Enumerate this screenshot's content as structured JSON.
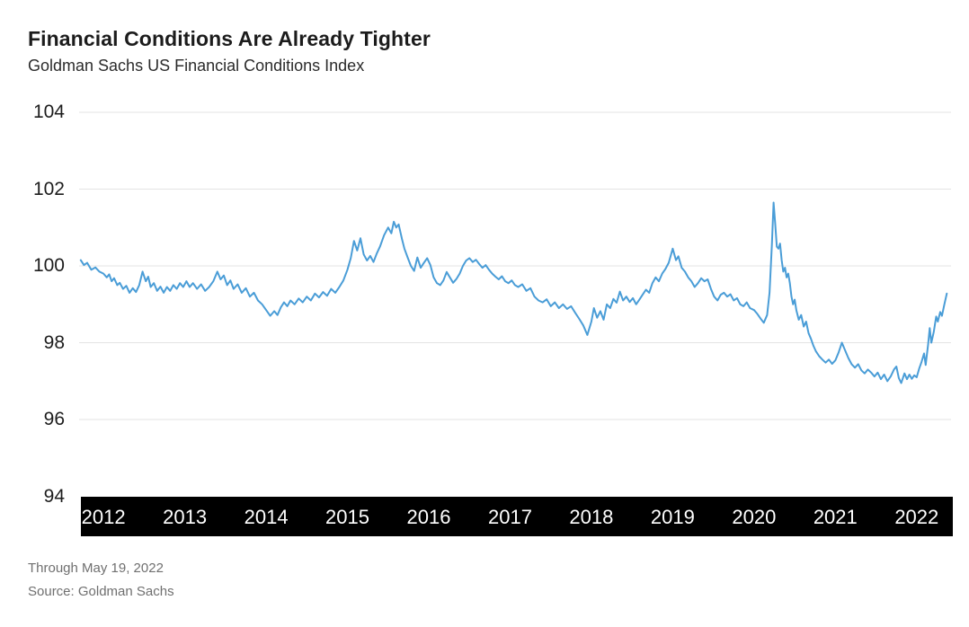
{
  "header": {
    "title": "Financial Conditions Are Already Tighter",
    "subtitle": "Goldman Sachs US Financial Conditions Index"
  },
  "footer": {
    "through": "Through May 19, 2022",
    "source": "Source: Goldman Sachs"
  },
  "colors": {
    "line": "#4A9DD7",
    "gridline": "#e3e3e3",
    "axis_bar": "#000000",
    "axis_bar_text": "#ffffff",
    "y_label_text": "#1d1d1d"
  },
  "chart_data": {
    "type": "line",
    "title": "Financial Conditions Are Already Tighter",
    "subtitle": "Goldman Sachs US Financial Conditions Index",
    "xlabel": "",
    "ylabel": "",
    "x_range": [
      2011.7,
      2022.4
    ],
    "ylim": [
      94,
      104
    ],
    "y_ticks": [
      94,
      96,
      98,
      100,
      102,
      104
    ],
    "y_gridline_ticks": [
      96,
      98,
      100,
      102,
      104
    ],
    "x_tick_labels": [
      "2012",
      "2013",
      "2014",
      "2015",
      "2016",
      "2017",
      "2018",
      "2019",
      "2020",
      "2021",
      "2022"
    ],
    "x_ticks": [
      2012,
      2013,
      2014,
      2015,
      2016,
      2017,
      2018,
      2019,
      2020,
      2021,
      2022
    ],
    "grid": "horizontal",
    "legend": "none",
    "series": [
      {
        "name": "Goldman Sachs US Financial Conditions Index",
        "points": [
          [
            2011.72,
            100.15
          ],
          [
            2011.76,
            100.02
          ],
          [
            2011.8,
            100.08
          ],
          [
            2011.85,
            99.9
          ],
          [
            2011.9,
            99.96
          ],
          [
            2011.95,
            99.85
          ],
          [
            2012.0,
            99.8
          ],
          [
            2012.04,
            99.7
          ],
          [
            2012.07,
            99.78
          ],
          [
            2012.1,
            99.6
          ],
          [
            2012.13,
            99.68
          ],
          [
            2012.17,
            99.5
          ],
          [
            2012.2,
            99.56
          ],
          [
            2012.24,
            99.4
          ],
          [
            2012.28,
            99.48
          ],
          [
            2012.32,
            99.3
          ],
          [
            2012.36,
            99.42
          ],
          [
            2012.4,
            99.32
          ],
          [
            2012.44,
            99.5
          ],
          [
            2012.48,
            99.85
          ],
          [
            2012.52,
            99.6
          ],
          [
            2012.55,
            99.72
          ],
          [
            2012.58,
            99.45
          ],
          [
            2012.62,
            99.55
          ],
          [
            2012.66,
            99.35
          ],
          [
            2012.7,
            99.46
          ],
          [
            2012.74,
            99.3
          ],
          [
            2012.78,
            99.45
          ],
          [
            2012.82,
            99.35
          ],
          [
            2012.86,
            99.5
          ],
          [
            2012.9,
            99.4
          ],
          [
            2012.94,
            99.55
          ],
          [
            2012.98,
            99.45
          ],
          [
            2013.02,
            99.6
          ],
          [
            2013.06,
            99.45
          ],
          [
            2013.1,
            99.55
          ],
          [
            2013.15,
            99.4
          ],
          [
            2013.2,
            99.52
          ],
          [
            2013.25,
            99.35
          ],
          [
            2013.3,
            99.45
          ],
          [
            2013.35,
            99.6
          ],
          [
            2013.4,
            99.85
          ],
          [
            2013.44,
            99.65
          ],
          [
            2013.48,
            99.75
          ],
          [
            2013.52,
            99.5
          ],
          [
            2013.56,
            99.62
          ],
          [
            2013.6,
            99.4
          ],
          [
            2013.65,
            99.52
          ],
          [
            2013.7,
            99.3
          ],
          [
            2013.75,
            99.42
          ],
          [
            2013.8,
            99.2
          ],
          [
            2013.85,
            99.3
          ],
          [
            2013.9,
            99.1
          ],
          [
            2013.95,
            99.0
          ],
          [
            2014.0,
            98.85
          ],
          [
            2014.05,
            98.7
          ],
          [
            2014.1,
            98.82
          ],
          [
            2014.14,
            98.72
          ],
          [
            2014.18,
            98.92
          ],
          [
            2014.22,
            99.05
          ],
          [
            2014.26,
            98.95
          ],
          [
            2014.3,
            99.1
          ],
          [
            2014.35,
            99.0
          ],
          [
            2014.4,
            99.15
          ],
          [
            2014.45,
            99.05
          ],
          [
            2014.5,
            99.2
          ],
          [
            2014.55,
            99.1
          ],
          [
            2014.6,
            99.28
          ],
          [
            2014.65,
            99.18
          ],
          [
            2014.7,
            99.32
          ],
          [
            2014.75,
            99.22
          ],
          [
            2014.8,
            99.4
          ],
          [
            2014.85,
            99.3
          ],
          [
            2014.9,
            99.45
          ],
          [
            2014.95,
            99.62
          ],
          [
            2015.0,
            99.9
          ],
          [
            2015.04,
            100.2
          ],
          [
            2015.08,
            100.65
          ],
          [
            2015.12,
            100.4
          ],
          [
            2015.16,
            100.72
          ],
          [
            2015.2,
            100.3
          ],
          [
            2015.24,
            100.14
          ],
          [
            2015.28,
            100.26
          ],
          [
            2015.32,
            100.1
          ],
          [
            2015.36,
            100.32
          ],
          [
            2015.4,
            100.5
          ],
          [
            2015.45,
            100.8
          ],
          [
            2015.5,
            101.0
          ],
          [
            2015.54,
            100.85
          ],
          [
            2015.57,
            101.15
          ],
          [
            2015.6,
            101.0
          ],
          [
            2015.63,
            101.08
          ],
          [
            2015.67,
            100.7
          ],
          [
            2015.7,
            100.45
          ],
          [
            2015.74,
            100.22
          ],
          [
            2015.78,
            100.0
          ],
          [
            2015.82,
            99.87
          ],
          [
            2015.86,
            100.22
          ],
          [
            2015.9,
            99.95
          ],
          [
            2015.94,
            100.08
          ],
          [
            2015.98,
            100.2
          ],
          [
            2016.02,
            100.02
          ],
          [
            2016.06,
            99.7
          ],
          [
            2016.1,
            99.55
          ],
          [
            2016.14,
            99.5
          ],
          [
            2016.18,
            99.62
          ],
          [
            2016.22,
            99.84
          ],
          [
            2016.26,
            99.7
          ],
          [
            2016.3,
            99.56
          ],
          [
            2016.34,
            99.66
          ],
          [
            2016.38,
            99.8
          ],
          [
            2016.42,
            100.0
          ],
          [
            2016.46,
            100.14
          ],
          [
            2016.5,
            100.2
          ],
          [
            2016.54,
            100.1
          ],
          [
            2016.58,
            100.16
          ],
          [
            2016.62,
            100.05
          ],
          [
            2016.66,
            99.95
          ],
          [
            2016.7,
            100.02
          ],
          [
            2016.74,
            99.9
          ],
          [
            2016.78,
            99.8
          ],
          [
            2016.82,
            99.72
          ],
          [
            2016.86,
            99.65
          ],
          [
            2016.9,
            99.73
          ],
          [
            2016.94,
            99.6
          ],
          [
            2016.98,
            99.55
          ],
          [
            2017.02,
            99.62
          ],
          [
            2017.06,
            99.5
          ],
          [
            2017.1,
            99.45
          ],
          [
            2017.15,
            99.52
          ],
          [
            2017.2,
            99.35
          ],
          [
            2017.25,
            99.42
          ],
          [
            2017.3,
            99.2
          ],
          [
            2017.35,
            99.1
          ],
          [
            2017.4,
            99.05
          ],
          [
            2017.45,
            99.13
          ],
          [
            2017.5,
            98.95
          ],
          [
            2017.55,
            99.05
          ],
          [
            2017.6,
            98.9
          ],
          [
            2017.65,
            99.0
          ],
          [
            2017.7,
            98.88
          ],
          [
            2017.75,
            98.95
          ],
          [
            2017.8,
            98.78
          ],
          [
            2017.85,
            98.62
          ],
          [
            2017.9,
            98.45
          ],
          [
            2017.95,
            98.2
          ],
          [
            2018.0,
            98.55
          ],
          [
            2018.03,
            98.9
          ],
          [
            2018.07,
            98.65
          ],
          [
            2018.11,
            98.82
          ],
          [
            2018.15,
            98.6
          ],
          [
            2018.19,
            99.0
          ],
          [
            2018.23,
            98.9
          ],
          [
            2018.27,
            99.14
          ],
          [
            2018.31,
            99.04
          ],
          [
            2018.35,
            99.33
          ],
          [
            2018.39,
            99.1
          ],
          [
            2018.43,
            99.2
          ],
          [
            2018.47,
            99.06
          ],
          [
            2018.51,
            99.16
          ],
          [
            2018.55,
            99.0
          ],
          [
            2018.59,
            99.12
          ],
          [
            2018.63,
            99.25
          ],
          [
            2018.67,
            99.38
          ],
          [
            2018.71,
            99.3
          ],
          [
            2018.75,
            99.55
          ],
          [
            2018.79,
            99.7
          ],
          [
            2018.83,
            99.6
          ],
          [
            2018.87,
            99.8
          ],
          [
            2018.91,
            99.92
          ],
          [
            2018.95,
            100.08
          ],
          [
            2019.0,
            100.45
          ],
          [
            2019.04,
            100.15
          ],
          [
            2019.07,
            100.25
          ],
          [
            2019.11,
            99.95
          ],
          [
            2019.15,
            99.85
          ],
          [
            2019.19,
            99.7
          ],
          [
            2019.23,
            99.6
          ],
          [
            2019.27,
            99.45
          ],
          [
            2019.31,
            99.55
          ],
          [
            2019.35,
            99.68
          ],
          [
            2019.39,
            99.6
          ],
          [
            2019.43,
            99.65
          ],
          [
            2019.47,
            99.4
          ],
          [
            2019.51,
            99.2
          ],
          [
            2019.55,
            99.1
          ],
          [
            2019.59,
            99.25
          ],
          [
            2019.63,
            99.3
          ],
          [
            2019.67,
            99.2
          ],
          [
            2019.71,
            99.26
          ],
          [
            2019.75,
            99.1
          ],
          [
            2019.79,
            99.16
          ],
          [
            2019.83,
            99.0
          ],
          [
            2019.87,
            98.95
          ],
          [
            2019.91,
            99.05
          ],
          [
            2019.95,
            98.9
          ],
          [
            2020.0,
            98.85
          ],
          [
            2020.04,
            98.75
          ],
          [
            2020.08,
            98.63
          ],
          [
            2020.12,
            98.52
          ],
          [
            2020.16,
            98.72
          ],
          [
            2020.19,
            99.3
          ],
          [
            2020.22,
            100.6
          ],
          [
            2020.24,
            101.65
          ],
          [
            2020.26,
            101.1
          ],
          [
            2020.28,
            100.5
          ],
          [
            2020.3,
            100.45
          ],
          [
            2020.32,
            100.58
          ],
          [
            2020.34,
            100.15
          ],
          [
            2020.36,
            99.85
          ],
          [
            2020.38,
            99.95
          ],
          [
            2020.4,
            99.7
          ],
          [
            2020.42,
            99.8
          ],
          [
            2020.44,
            99.55
          ],
          [
            2020.46,
            99.2
          ],
          [
            2020.48,
            99.0
          ],
          [
            2020.5,
            99.12
          ],
          [
            2020.52,
            98.85
          ],
          [
            2020.55,
            98.6
          ],
          [
            2020.58,
            98.72
          ],
          [
            2020.61,
            98.42
          ],
          [
            2020.64,
            98.55
          ],
          [
            2020.67,
            98.25
          ],
          [
            2020.7,
            98.1
          ],
          [
            2020.73,
            97.92
          ],
          [
            2020.76,
            97.78
          ],
          [
            2020.8,
            97.65
          ],
          [
            2020.84,
            97.56
          ],
          [
            2020.88,
            97.48
          ],
          [
            2020.92,
            97.56
          ],
          [
            2020.96,
            97.45
          ],
          [
            2021.0,
            97.54
          ],
          [
            2021.04,
            97.75
          ],
          [
            2021.08,
            98.0
          ],
          [
            2021.12,
            97.8
          ],
          [
            2021.16,
            97.6
          ],
          [
            2021.2,
            97.44
          ],
          [
            2021.24,
            97.35
          ],
          [
            2021.28,
            97.44
          ],
          [
            2021.32,
            97.28
          ],
          [
            2021.36,
            97.2
          ],
          [
            2021.4,
            97.3
          ],
          [
            2021.44,
            97.22
          ],
          [
            2021.48,
            97.12
          ],
          [
            2021.52,
            97.22
          ],
          [
            2021.56,
            97.05
          ],
          [
            2021.6,
            97.17
          ],
          [
            2021.64,
            97.0
          ],
          [
            2021.68,
            97.12
          ],
          [
            2021.72,
            97.3
          ],
          [
            2021.75,
            97.38
          ],
          [
            2021.78,
            97.08
          ],
          [
            2021.81,
            96.95
          ],
          [
            2021.85,
            97.2
          ],
          [
            2021.88,
            97.05
          ],
          [
            2021.91,
            97.17
          ],
          [
            2021.94,
            97.06
          ],
          [
            2021.97,
            97.15
          ],
          [
            2022.0,
            97.1
          ],
          [
            2022.03,
            97.32
          ],
          [
            2022.06,
            97.5
          ],
          [
            2022.09,
            97.72
          ],
          [
            2022.11,
            97.42
          ],
          [
            2022.14,
            97.95
          ],
          [
            2022.16,
            98.38
          ],
          [
            2022.18,
            98.0
          ],
          [
            2022.21,
            98.28
          ],
          [
            2022.24,
            98.68
          ],
          [
            2022.26,
            98.55
          ],
          [
            2022.29,
            98.8
          ],
          [
            2022.31,
            98.7
          ],
          [
            2022.34,
            99.0
          ],
          [
            2022.37,
            99.28
          ]
        ]
      }
    ]
  }
}
